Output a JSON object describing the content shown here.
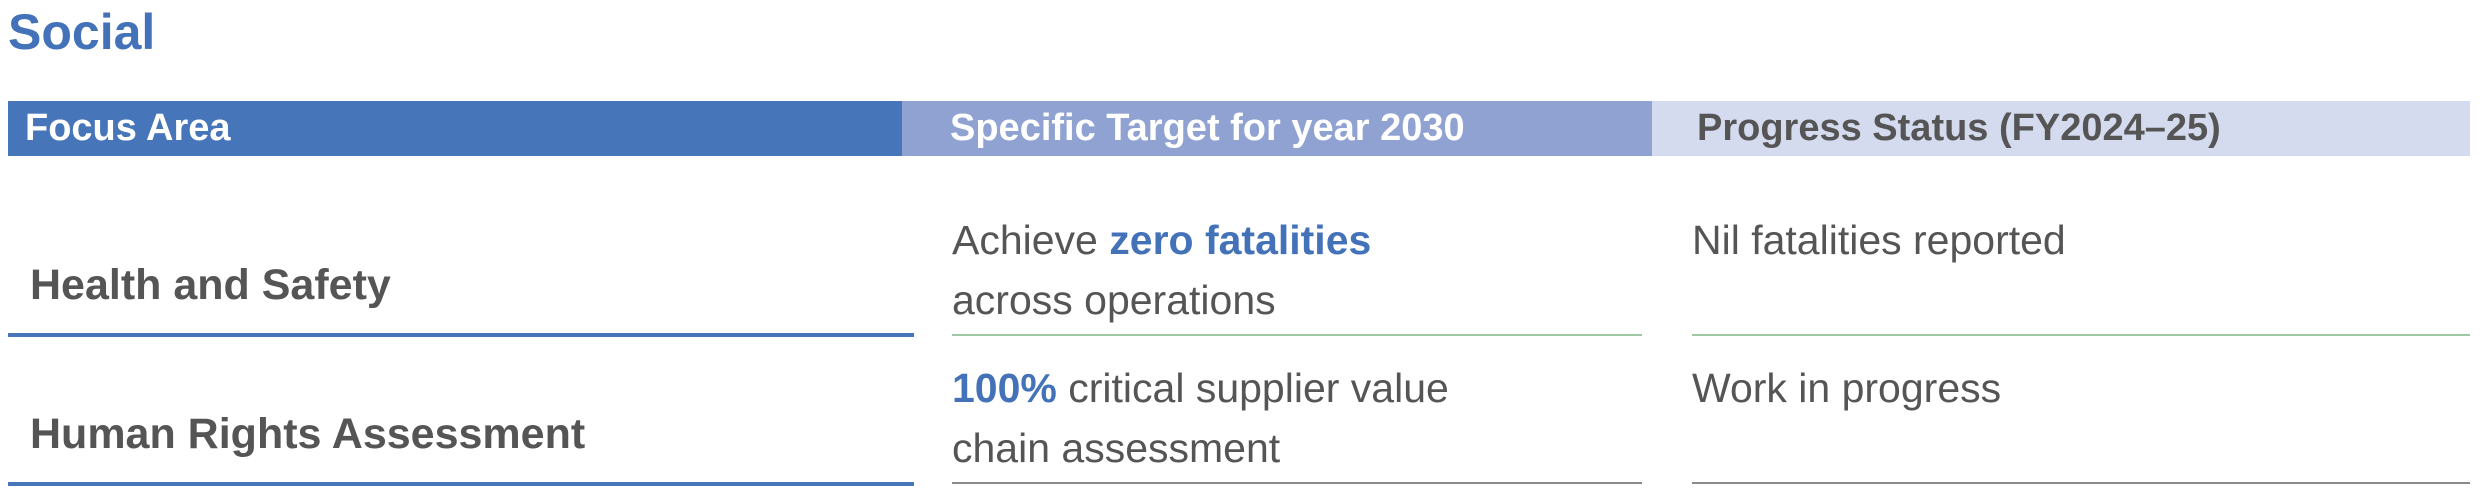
{
  "section": {
    "title": "Social"
  },
  "table": {
    "headers": {
      "focus_area": "Focus Area",
      "target": "Specific Target for year 2030",
      "progress": "Progress Status (FY2024–25)"
    },
    "rows": [
      {
        "focus_area": "Health and Safety",
        "target_prefix": "Achieve ",
        "target_highlight": "zero fatalities",
        "target_line2": "across operations",
        "progress": "Nil fatalities reported"
      },
      {
        "focus_area": "Human Rights Assessment",
        "target_highlight": "100%",
        "target_suffix": " critical supplier value",
        "target_line2": "chain assessment",
        "progress": "Work in progress"
      }
    ]
  },
  "colors": {
    "accent_blue": "#4472b8",
    "header_focus_bg": "#4775b9",
    "header_target_bg": "#8fa2d1",
    "header_progress_bg": "#d4dbee",
    "text_gray": "#555555",
    "rule_green": "#9fc8a6"
  }
}
